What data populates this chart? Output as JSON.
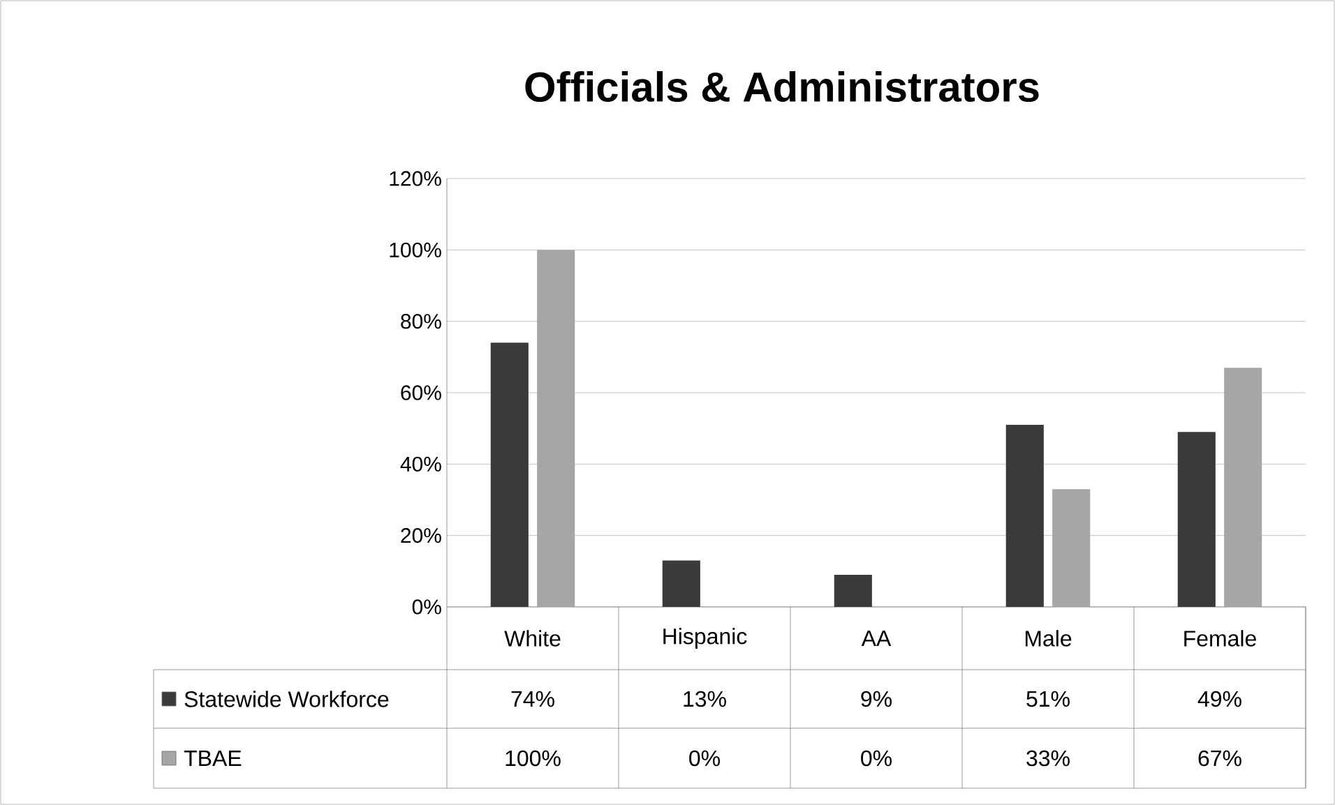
{
  "chart_data": {
    "type": "bar",
    "title": "Officials & Administrators",
    "categories": [
      "White",
      "Hispanic",
      "AA",
      "Male",
      "Female"
    ],
    "series": [
      {
        "name": "Statewide Workforce",
        "color": "#3a3a3a",
        "values": [
          74,
          13,
          9,
          51,
          49
        ],
        "value_labels": [
          "74%",
          "13%",
          "9%",
          "51%",
          "49%"
        ]
      },
      {
        "name": "TBAE",
        "color": "#a6a6a6",
        "values": [
          100,
          0,
          0,
          33,
          67
        ],
        "value_labels": [
          "100%",
          "0%",
          "0%",
          "33%",
          "67%"
        ]
      }
    ],
    "ylim": [
      0,
      120
    ],
    "yticks": [
      {
        "value": 0,
        "label": "0%"
      },
      {
        "value": 20,
        "label": "20%"
      },
      {
        "value": 40,
        "label": "40%"
      },
      {
        "value": 60,
        "label": "60%"
      },
      {
        "value": 80,
        "label": "80%"
      },
      {
        "value": 100,
        "label": "100%"
      },
      {
        "value": 120,
        "label": "120%"
      }
    ],
    "grid": "y",
    "legend": "bottom left"
  }
}
